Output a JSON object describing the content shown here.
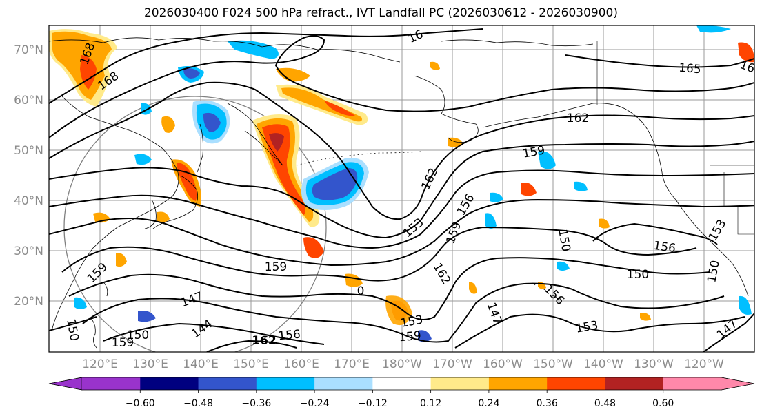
{
  "title": "2026030400 F024 500 hPa refract., IVT Landfall PC (2026030612 - 2026030900)",
  "lat_labels": [
    "70°N",
    "60°N",
    "50°N",
    "40°N",
    "30°N",
    "20°N"
  ],
  "lon_labels": [
    "120°E",
    "130°E",
    "140°E",
    "150°E",
    "160°E",
    "170°E",
    "180°W",
    "170°W",
    "160°W",
    "150°W",
    "140°W",
    "130°W",
    "120°W"
  ],
  "contour_labels": [
    "168",
    "168",
    "165",
    "16",
    "162",
    "159",
    "162",
    "156",
    "153",
    "159",
    "159",
    "150",
    "156",
    "153",
    "150",
    "150",
    "159",
    "162",
    "0",
    "147",
    "144",
    "150",
    "159",
    "150",
    "162",
    "156",
    "159",
    "153",
    "147",
    "156",
    "153",
    "147",
    "16"
  ],
  "colorbar": {
    "ticks": [
      "−0.60",
      "−0.48",
      "−0.36",
      "−0.24",
      "−0.12",
      "0.12",
      "0.24",
      "0.36",
      "0.48",
      "0.60"
    ],
    "colors": [
      "#9933cc",
      "#000080",
      "#3355cc",
      "#00bfff",
      "#aadfff",
      "#ffffff",
      "#ffea8a",
      "#ffa500",
      "#ff4500",
      "#b22222",
      "#ff88aa"
    ]
  },
  "colors": {
    "coast": "#000000",
    "grid": "#999999",
    "contour": "#000000",
    "ring": "#808080"
  }
}
